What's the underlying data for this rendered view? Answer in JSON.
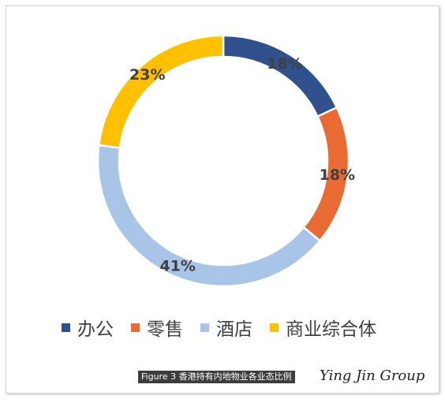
{
  "chart_data": {
    "type": "pie",
    "subtype": "donut",
    "categories": [
      "办公",
      "零售",
      "酒店",
      "商业综合体"
    ],
    "values": [
      18,
      18,
      41,
      23
    ],
    "labels": [
      "18%",
      "18%",
      "41%",
      "23%"
    ],
    "colors": [
      "#2F528F",
      "#E96B33",
      "#A8C5E8",
      "#FFC000"
    ],
    "legend_position": "bottom",
    "start_angle": "top, clockwise"
  },
  "legend": [
    {
      "label": "办公",
      "color": "#2F528F"
    },
    {
      "label": "零售",
      "color": "#E96B33"
    },
    {
      "label": "酒店",
      "color": "#A8C5E8"
    },
    {
      "label": "商业综合体",
      "color": "#FFC000"
    }
  ],
  "caption": "Figure 3 香港持有内地物业各业态比例",
  "brand": "Ying Jin Group"
}
